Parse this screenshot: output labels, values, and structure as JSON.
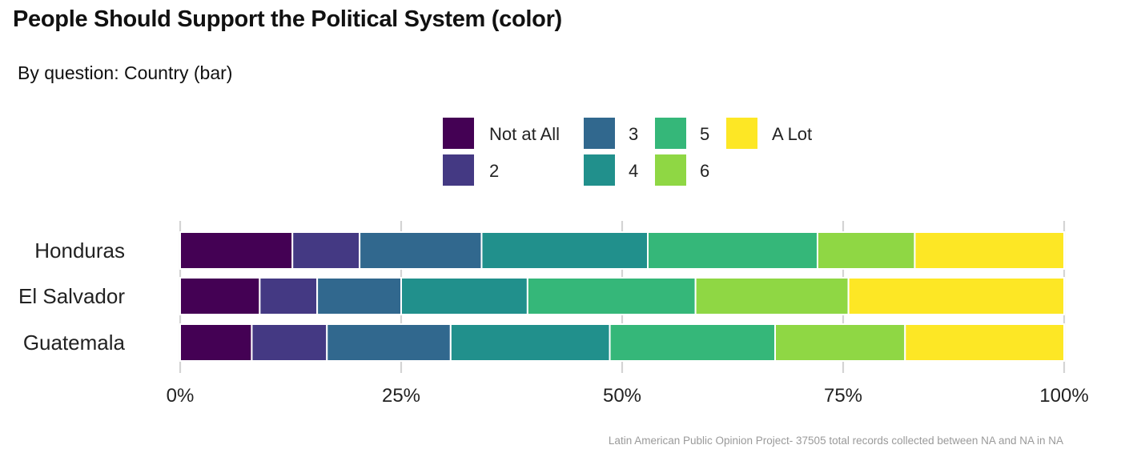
{
  "title": "People Should Support the Political System (color)",
  "subtitle": "By question: Country (bar)",
  "caption": "Latin American Public Opinion Project- 37505 total records collected between NA and NA in  NA",
  "chart_data": {
    "type": "bar",
    "orientation": "horizontal",
    "stacked": true,
    "categories": [
      "Honduras",
      "El Salvador",
      "Guatemala"
    ],
    "series": [
      {
        "name": "Not at All",
        "color": "#440154",
        "values": [
          12.7,
          9.0,
          8.1
        ]
      },
      {
        "name": "2",
        "color": "#443983",
        "values": [
          7.6,
          6.5,
          8.5
        ]
      },
      {
        "name": "3",
        "color": "#31688E",
        "values": [
          13.8,
          9.5,
          14.0
        ]
      },
      {
        "name": "4",
        "color": "#21908C",
        "values": [
          18.8,
          14.3,
          18.0
        ]
      },
      {
        "name": "5",
        "color": "#35B779",
        "values": [
          19.2,
          19.0,
          18.7
        ]
      },
      {
        "name": "6",
        "color": "#8FD744",
        "values": [
          11.0,
          17.3,
          14.7
        ]
      },
      {
        "name": "A Lot",
        "color": "#FDE725",
        "values": [
          16.9,
          24.4,
          18.0
        ]
      }
    ],
    "x_ticks": [
      "0%",
      "25%",
      "50%",
      "75%",
      "100%"
    ],
    "xlim": [
      0,
      100
    ],
    "legend_position": "top",
    "grid": true
  }
}
